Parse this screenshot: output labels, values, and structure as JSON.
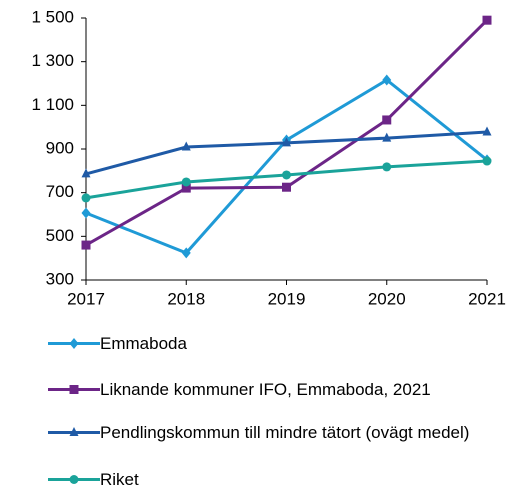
{
  "chart_data": {
    "type": "line",
    "x": [
      2017,
      2018,
      2019,
      2020,
      2021
    ],
    "xlim": [
      2017,
      2021
    ],
    "xticks": [
      2017,
      2018,
      2019,
      2020,
      2021
    ],
    "ylim": [
      300,
      1500
    ],
    "yticks": [
      300,
      500,
      700,
      900,
      {
        "value": 1100,
        "label": "1 100"
      },
      {
        "value": 1300,
        "label": "1 300"
      },
      {
        "value": 1500,
        "label": "1 500"
      }
    ],
    "grid": false,
    "legend": "bottom",
    "series": [
      {
        "name": "Emmaboda",
        "color": "#1f9ad6",
        "marker": "diamond",
        "values": [
          607,
          424,
          941,
          1216,
          850
        ]
      },
      {
        "name": "Liknande kommuner IFO, Emmaboda, 2021",
        "color": "#6c2587",
        "marker": "square",
        "values": [
          460,
          721,
          725,
          1033,
          1490
        ]
      },
      {
        "name": "Pendlingskommun till mindre tätort (ovägt medel)",
        "color": "#1f5aa6",
        "marker": "triangle",
        "values": [
          786,
          909,
          928,
          950,
          978
        ]
      },
      {
        "name": "Riket",
        "color": "#1aa39a",
        "marker": "circle",
        "values": [
          676,
          749,
          781,
          818,
          845
        ]
      }
    ]
  }
}
